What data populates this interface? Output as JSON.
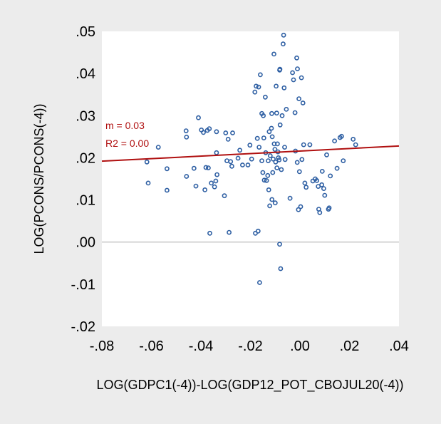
{
  "chart_data": {
    "type": "scatter",
    "xlabel": "LOG(GDPC1(-4))-LOG(GDP12_POT_CBOJUL20(-4))",
    "ylabel": "LOG(PCONS/PCONS(-4))",
    "xlim": [
      -0.08,
      0.04
    ],
    "ylim": [
      -0.02,
      0.05
    ],
    "x_ticks": [
      -0.08,
      -0.06,
      -0.04,
      -0.02,
      0.0,
      0.02,
      0.04
    ],
    "x_tick_labels": [
      "-.08",
      "-.06",
      "-.04",
      "-.02",
      ".00",
      ".02",
      ".04"
    ],
    "y_ticks": [
      -0.02,
      -0.01,
      0.0,
      0.01,
      0.02,
      0.03,
      0.04,
      0.05
    ],
    "y_tick_labels": [
      "-.02",
      "-.01",
      ".00",
      ".01",
      ".02",
      ".03",
      ".04",
      ".05"
    ],
    "grid": false,
    "zero_line": true,
    "annotations": [
      "m = 0.03",
      "R2 = 0.00"
    ],
    "colors": {
      "points": "#2e5fa3",
      "fit_line": "#b01010",
      "annotation": "#b01010",
      "background": "#ececec",
      "plot_area": "#ffffff",
      "zero_line": "#aaaaaa"
    },
    "fit_line": {
      "x": [
        -0.08,
        0.04
      ],
      "y": [
        0.0192,
        0.0228
      ]
    },
    "points": [
      [
        -0.0618,
        0.019
      ],
      [
        -0.0613,
        0.014
      ],
      [
        -0.0572,
        0.0225
      ],
      [
        -0.0537,
        0.0174
      ],
      [
        -0.0537,
        0.0123
      ],
      [
        -0.046,
        0.0264
      ],
      [
        -0.0458,
        0.0249
      ],
      [
        -0.0458,
        0.0156
      ],
      [
        -0.0428,
        0.0175
      ],
      [
        -0.042,
        0.0133
      ],
      [
        -0.041,
        0.0295
      ],
      [
        -0.0398,
        0.0266
      ],
      [
        -0.039,
        0.026
      ],
      [
        -0.0384,
        0.0124
      ],
      [
        -0.038,
        0.0177
      ],
      [
        -0.0374,
        0.0265
      ],
      [
        -0.037,
        0.0176
      ],
      [
        -0.0366,
        0.0269
      ],
      [
        -0.0364,
        0.0021
      ],
      [
        -0.0358,
        0.014
      ],
      [
        -0.0345,
        0.0131
      ],
      [
        -0.034,
        0.0145
      ],
      [
        -0.0337,
        0.0262
      ],
      [
        -0.0335,
        0.016
      ],
      [
        -0.0337,
        0.0212
      ],
      [
        -0.0305,
        0.011
      ],
      [
        -0.03,
        0.0259
      ],
      [
        -0.029,
        0.0244
      ],
      [
        -0.0295,
        0.0193
      ],
      [
        -0.0286,
        0.0023
      ],
      [
        -0.028,
        0.0191
      ],
      [
        -0.0272,
        0.0259
      ],
      [
        -0.0275,
        0.018
      ],
      [
        -0.025,
        0.0199
      ],
      [
        -0.0243,
        0.0218
      ],
      [
        -0.0232,
        0.0183
      ],
      [
        -0.021,
        0.0183
      ],
      [
        -0.0202,
        0.023
      ],
      [
        -0.0195,
        0.0197
      ],
      [
        -0.0182,
        0.0356
      ],
      [
        -0.018,
        0.0021
      ],
      [
        -0.0177,
        0.037
      ],
      [
        -0.0172,
        0.0246
      ],
      [
        -0.0169,
        0.0026
      ],
      [
        -0.0167,
        0.0368
      ],
      [
        -0.0165,
        0.0225
      ],
      [
        -0.0163,
        -0.0096
      ],
      [
        -0.016,
        0.0397
      ],
      [
        -0.0154,
        0.0193
      ],
      [
        -0.0154,
        0.0305
      ],
      [
        -0.0148,
        0.03
      ],
      [
        -0.0146,
        0.0247
      ],
      [
        -0.015,
        0.0165
      ],
      [
        -0.0144,
        0.0147
      ],
      [
        -0.014,
        0.0344
      ],
      [
        -0.0138,
        0.0212
      ],
      [
        -0.0135,
        0.0146
      ],
      [
        -0.013,
        0.0158
      ],
      [
        -0.0128,
        0.0193
      ],
      [
        -0.0126,
        0.0124
      ],
      [
        -0.0124,
        0.0262
      ],
      [
        -0.0122,
        0.0086
      ],
      [
        -0.012,
        0.0205
      ],
      [
        -0.0115,
        0.027
      ],
      [
        -0.0114,
        0.0305
      ],
      [
        -0.0113,
        0.0101
      ],
      [
        -0.0112,
        0.025
      ],
      [
        -0.011,
        0.0165
      ],
      [
        -0.0108,
        0.0197
      ],
      [
        -0.0105,
        0.0446
      ],
      [
        -0.0104,
        0.0233
      ],
      [
        -0.0101,
        0.022
      ],
      [
        -0.01,
        0.0093
      ],
      [
        -0.0098,
        0.019
      ],
      [
        -0.0096,
        0.037
      ],
      [
        -0.0094,
        0.0306
      ],
      [
        -0.0093,
        0.0176
      ],
      [
        -0.0091,
        0.0233
      ],
      [
        -0.0089,
        0.0214
      ],
      [
        -0.0087,
        0.02
      ],
      [
        -0.0084,
        0.0195
      ],
      [
        -0.0082,
        -0.0005
      ],
      [
        -0.0082,
        0.0408
      ],
      [
        -0.0081,
        0.041
      ],
      [
        -0.008,
        0.0278
      ],
      [
        -0.0078,
        -0.0063
      ],
      [
        -0.0075,
        0.0172
      ],
      [
        -0.0072,
        0.03
      ],
      [
        -0.0068,
        0.047
      ],
      [
        -0.0066,
        0.0491
      ],
      [
        -0.0064,
        0.0366
      ],
      [
        -0.0062,
        0.0225
      ],
      [
        -0.006,
        0.0196
      ],
      [
        -0.0055,
        0.0315
      ],
      [
        -0.004,
        0.0104
      ],
      [
        -0.003,
        0.0402
      ],
      [
        -0.0026,
        0.0385
      ],
      [
        -0.002,
        0.0307
      ],
      [
        -0.0018,
        0.0216
      ],
      [
        -0.0013,
        0.0437
      ],
      [
        -0.0011,
        0.0189
      ],
      [
        -0.001,
        0.0411
      ],
      [
        -0.0006,
        0.0077
      ],
      [
        -0.0004,
        0.034
      ],
      [
        -0.0002,
        0.0167
      ],
      [
        0.0003,
        0.0084
      ],
      [
        0.0006,
        0.039
      ],
      [
        0.0008,
        0.0196
      ],
      [
        0.0012,
        0.033
      ],
      [
        0.0015,
        0.0231
      ],
      [
        0.002,
        0.014
      ],
      [
        0.0025,
        0.013
      ],
      [
        0.004,
        0.0231
      ],
      [
        0.0052,
        0.0145
      ],
      [
        0.0062,
        0.015
      ],
      [
        0.0068,
        0.0146
      ],
      [
        0.0074,
        0.0132
      ],
      [
        0.0076,
        0.0078
      ],
      [
        0.008,
        0.007
      ],
      [
        0.0088,
        0.0136
      ],
      [
        0.009,
        0.0168
      ],
      [
        0.0096,
        0.0127
      ],
      [
        0.01,
        0.0111
      ],
      [
        0.0108,
        0.0207
      ],
      [
        0.0115,
        0.0078
      ],
      [
        0.0118,
        0.0081
      ],
      [
        0.0123,
        0.0157
      ],
      [
        0.014,
        0.024
      ],
      [
        0.015,
        0.0175
      ],
      [
        0.0162,
        0.0248
      ],
      [
        0.0168,
        0.0251
      ],
      [
        0.0175,
        0.0193
      ],
      [
        0.0215,
        0.0244
      ],
      [
        0.0225,
        0.0231
      ]
    ]
  }
}
